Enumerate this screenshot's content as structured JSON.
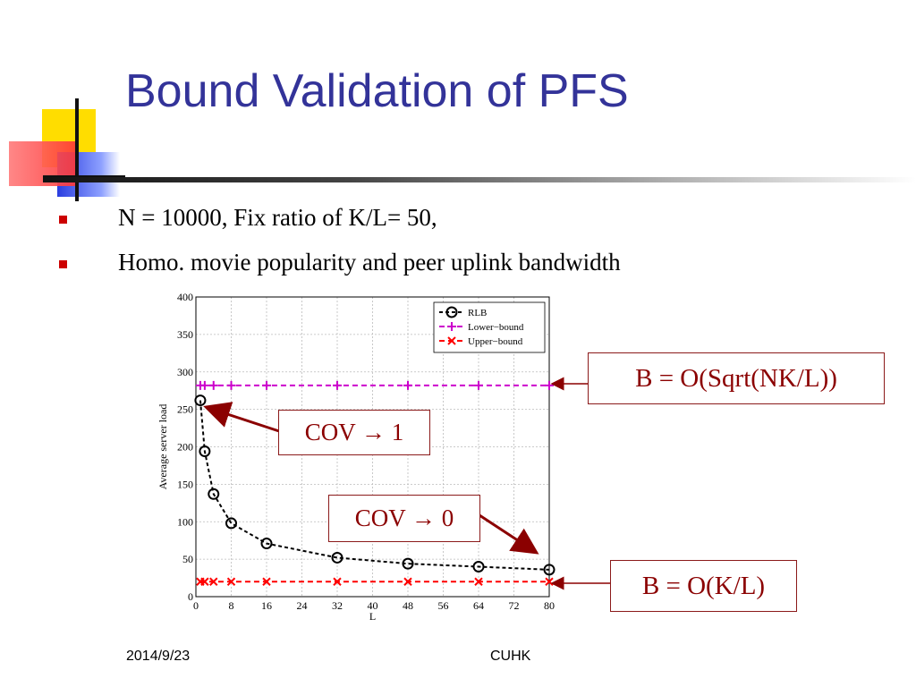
{
  "slide": {
    "title": "Bound Validation of PFS",
    "bullets": [
      "N = 10000, Fix ratio of K/L= 50,",
      "Homo. movie popularity and peer uplink bandwidth"
    ],
    "footer_date": "2014/9/23",
    "footer_org": "CUHK"
  },
  "annotations": {
    "bound_upper": "B = O(Sqrt(NK/L))",
    "bound_lower": "B = O(K/L)",
    "cov_one": {
      "prefix": "COV ",
      "arrow": "→",
      "suffix": " 1"
    },
    "cov_zero": {
      "prefix": "COV ",
      "arrow": "→",
      "suffix": " 0"
    },
    "arrow_color": "#8b0000"
  },
  "chart_data": {
    "type": "line",
    "xlabel": "L",
    "ylabel": "Average server load",
    "xlim": [
      0,
      80
    ],
    "ylim": [
      0,
      400
    ],
    "xticks": [
      0,
      8,
      16,
      24,
      32,
      40,
      48,
      56,
      64,
      72,
      80
    ],
    "yticks": [
      0,
      50,
      100,
      150,
      200,
      250,
      300,
      350,
      400
    ],
    "grid": true,
    "legend_position": "top-right",
    "series": [
      {
        "name": "RLB",
        "color": "#000000",
        "marker": "circle",
        "dash": "4,3",
        "x": [
          1,
          2,
          4,
          8,
          16,
          32,
          48,
          64,
          80
        ],
        "y": [
          262,
          194,
          137,
          98,
          71,
          52,
          44,
          40,
          36
        ]
      },
      {
        "name": "Lower−bound",
        "color": "#cc00cc",
        "marker": "plus",
        "dash": "6,4",
        "x": [
          1,
          2,
          4,
          8,
          16,
          32,
          48,
          64,
          80
        ],
        "y": [
          282,
          282,
          282,
          282,
          282,
          282,
          282,
          282,
          282
        ]
      },
      {
        "name": "Upper−bound",
        "color": "#ff0000",
        "marker": "cross",
        "dash": "6,4",
        "x": [
          1,
          2,
          4,
          8,
          16,
          32,
          48,
          64,
          80
        ],
        "y": [
          20,
          20,
          20,
          20,
          20,
          20,
          20,
          20,
          20
        ]
      }
    ]
  }
}
